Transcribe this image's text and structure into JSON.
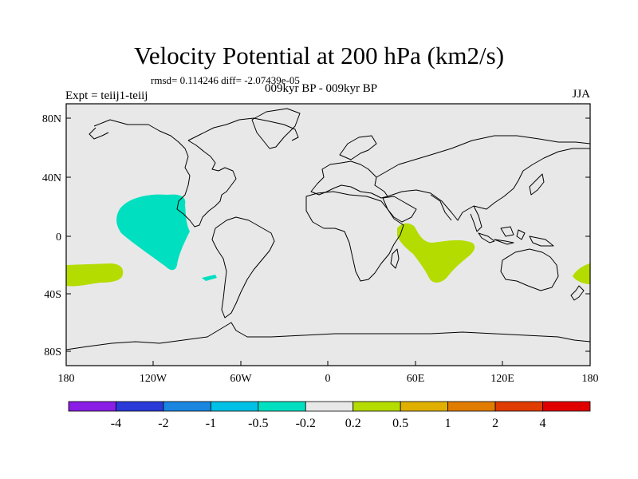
{
  "title": "Velocity Potential at 200 hPa (km2/s)",
  "stats": "rmsd= 0.114246 diff= -2.07439e-05",
  "experiment": "Expt = teiij1-teiij",
  "period": "009kyr BP - 009kyr BP",
  "season": "JJA",
  "map": {
    "lat_labels": [
      "80N",
      "40N",
      "0",
      "40S",
      "80S"
    ],
    "lon_labels": [
      "180",
      "120W",
      "60W",
      "0",
      "60E",
      "120E",
      "180"
    ],
    "background_color": "#e8e8e8",
    "anomaly_regions": [
      {
        "sign": "negative",
        "class": "-0.5 to -0.2",
        "color": "#00e0c0",
        "location": "eastern tropical Pacific"
      },
      {
        "sign": "negative",
        "class": "-0.5 to -0.2",
        "color": "#00e0c0",
        "location": "southeast Pacific off Chile"
      },
      {
        "sign": "positive",
        "class": "0.2 to 0.5",
        "color": "#b4dc00",
        "location": "western Indian Ocean"
      },
      {
        "sign": "positive",
        "class": "0.2 to 0.5",
        "color": "#b4dc00",
        "location": "South Pacific near dateline (west)"
      },
      {
        "sign": "positive",
        "class": "0.2 to 0.5",
        "color": "#b4dc00",
        "location": "South Pacific near dateline (east)"
      }
    ]
  },
  "colorbar": {
    "labels": [
      "-4",
      "-2",
      "-1",
      "-0.5",
      "-0.2",
      "0.2",
      "0.5",
      "1",
      "2",
      "4"
    ],
    "colors": [
      "#8a1ee6",
      "#2a3ad8",
      "#1a86e0",
      "#00c0e6",
      "#00e0c0",
      "#e8e8e8",
      "#b4dc00",
      "#e0b000",
      "#e07c00",
      "#e03c00",
      "#e00000"
    ]
  }
}
